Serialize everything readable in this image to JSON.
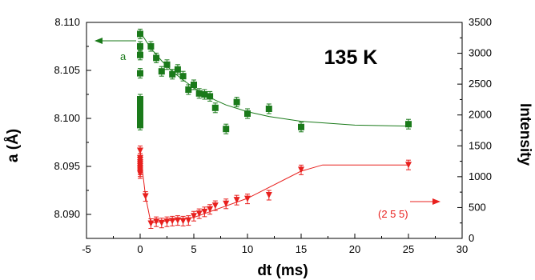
{
  "chart_data": {
    "type": "scatter",
    "xlabel": "dt (ms)",
    "ylabel": "a (Å)",
    "y2label": "Intensity",
    "annotation": "135 K",
    "xlim": [
      -5,
      30
    ],
    "ylim": [
      8.0875,
      8.11
    ],
    "y2lim": [
      0,
      3500
    ],
    "x_ticks": [
      "-5",
      "0",
      "5",
      "10",
      "15",
      "20",
      "25",
      "30"
    ],
    "y_ticks": [
      "8.090",
      "8.095",
      "8.100",
      "8.105",
      "8.110"
    ],
    "y2_ticks": [
      "0",
      "500",
      "1000",
      "1500",
      "2000",
      "2500",
      "3000",
      "3500"
    ],
    "colors": {
      "a": "#1a7a1a",
      "intensity": "#e8201e"
    },
    "series": [
      {
        "name": "a",
        "axis": "left",
        "marker": "square",
        "color": "#1a7a1a",
        "points": [
          [
            0.0,
            8.1088
          ],
          [
            0.0,
            8.1075
          ],
          [
            0.0,
            8.1066
          ],
          [
            0.0,
            8.1047
          ],
          [
            0.0,
            8.102
          ],
          [
            0.0,
            8.1017
          ],
          [
            0.0,
            8.1013
          ],
          [
            0.0,
            8.1008
          ],
          [
            0.0,
            8.1002
          ],
          [
            0.0,
            8.0998
          ],
          [
            0.0,
            8.0993
          ],
          [
            1.0,
            8.1075
          ],
          [
            1.5,
            8.1063
          ],
          [
            2.0,
            8.1049
          ],
          [
            2.5,
            8.1056
          ],
          [
            3.0,
            8.1046
          ],
          [
            3.5,
            8.1051
          ],
          [
            4.0,
            8.1044
          ],
          [
            4.5,
            8.103
          ],
          [
            5.0,
            8.1035
          ],
          [
            5.5,
            8.1026
          ],
          [
            6.0,
            8.1025
          ],
          [
            6.5,
            8.1023
          ],
          [
            7.0,
            8.1011
          ],
          [
            8.0,
            8.0989
          ],
          [
            9.0,
            8.1017
          ],
          [
            10.0,
            8.1005
          ],
          [
            12.0,
            8.101
          ],
          [
            15.0,
            8.0991
          ],
          [
            25.0,
            8.0994
          ]
        ],
        "fit": [
          [
            0.0,
            8.109
          ],
          [
            1.0,
            8.1073
          ],
          [
            2.0,
            8.106
          ],
          [
            3.0,
            8.1049
          ],
          [
            4.0,
            8.104
          ],
          [
            5.0,
            8.1032
          ],
          [
            6.0,
            8.1025
          ],
          [
            7.0,
            8.1019
          ],
          [
            8.0,
            8.1014
          ],
          [
            10.0,
            8.1007
          ],
          [
            12.0,
            8.1002
          ],
          [
            15.0,
            8.0997
          ],
          [
            20.0,
            8.0993
          ],
          [
            25.0,
            8.0992
          ]
        ],
        "arrow_direction": "left",
        "tag": "a"
      },
      {
        "name": "(2 5 5)",
        "axis": "right",
        "marker": "triangle-down",
        "color": "#e8201e",
        "points": [
          [
            0.0,
            1420
          ],
          [
            0.0,
            1300
          ],
          [
            0.0,
            1270
          ],
          [
            0.0,
            1230
          ],
          [
            0.0,
            1200
          ],
          [
            0.0,
            1170
          ],
          [
            0.0,
            1140
          ],
          [
            0.0,
            1110
          ],
          [
            0.0,
            1080
          ],
          [
            0.0,
            1050
          ],
          [
            0.5,
            680
          ],
          [
            1.0,
            240
          ],
          [
            1.5,
            270
          ],
          [
            2.0,
            250
          ],
          [
            2.5,
            270
          ],
          [
            3.0,
            280
          ],
          [
            3.5,
            290
          ],
          [
            4.0,
            280
          ],
          [
            4.5,
            290
          ],
          [
            5.0,
            360
          ],
          [
            5.5,
            400
          ],
          [
            6.0,
            430
          ],
          [
            6.5,
            470
          ],
          [
            7.0,
            530
          ],
          [
            8.0,
            560
          ],
          [
            9.0,
            620
          ],
          [
            10.0,
            640
          ],
          [
            12.0,
            700
          ],
          [
            15.0,
            1110
          ],
          [
            25.0,
            1190
          ]
        ],
        "fit": [
          [
            0.0,
            1420
          ],
          [
            0.5,
            680
          ],
          [
            1.0,
            250
          ],
          [
            5.0,
            340
          ],
          [
            10.0,
            650
          ],
          [
            15.0,
            1090
          ],
          [
            17.0,
            1190
          ],
          [
            25.0,
            1190
          ]
        ],
        "arrow_direction": "right",
        "tag": "(2 5 5)"
      }
    ]
  }
}
